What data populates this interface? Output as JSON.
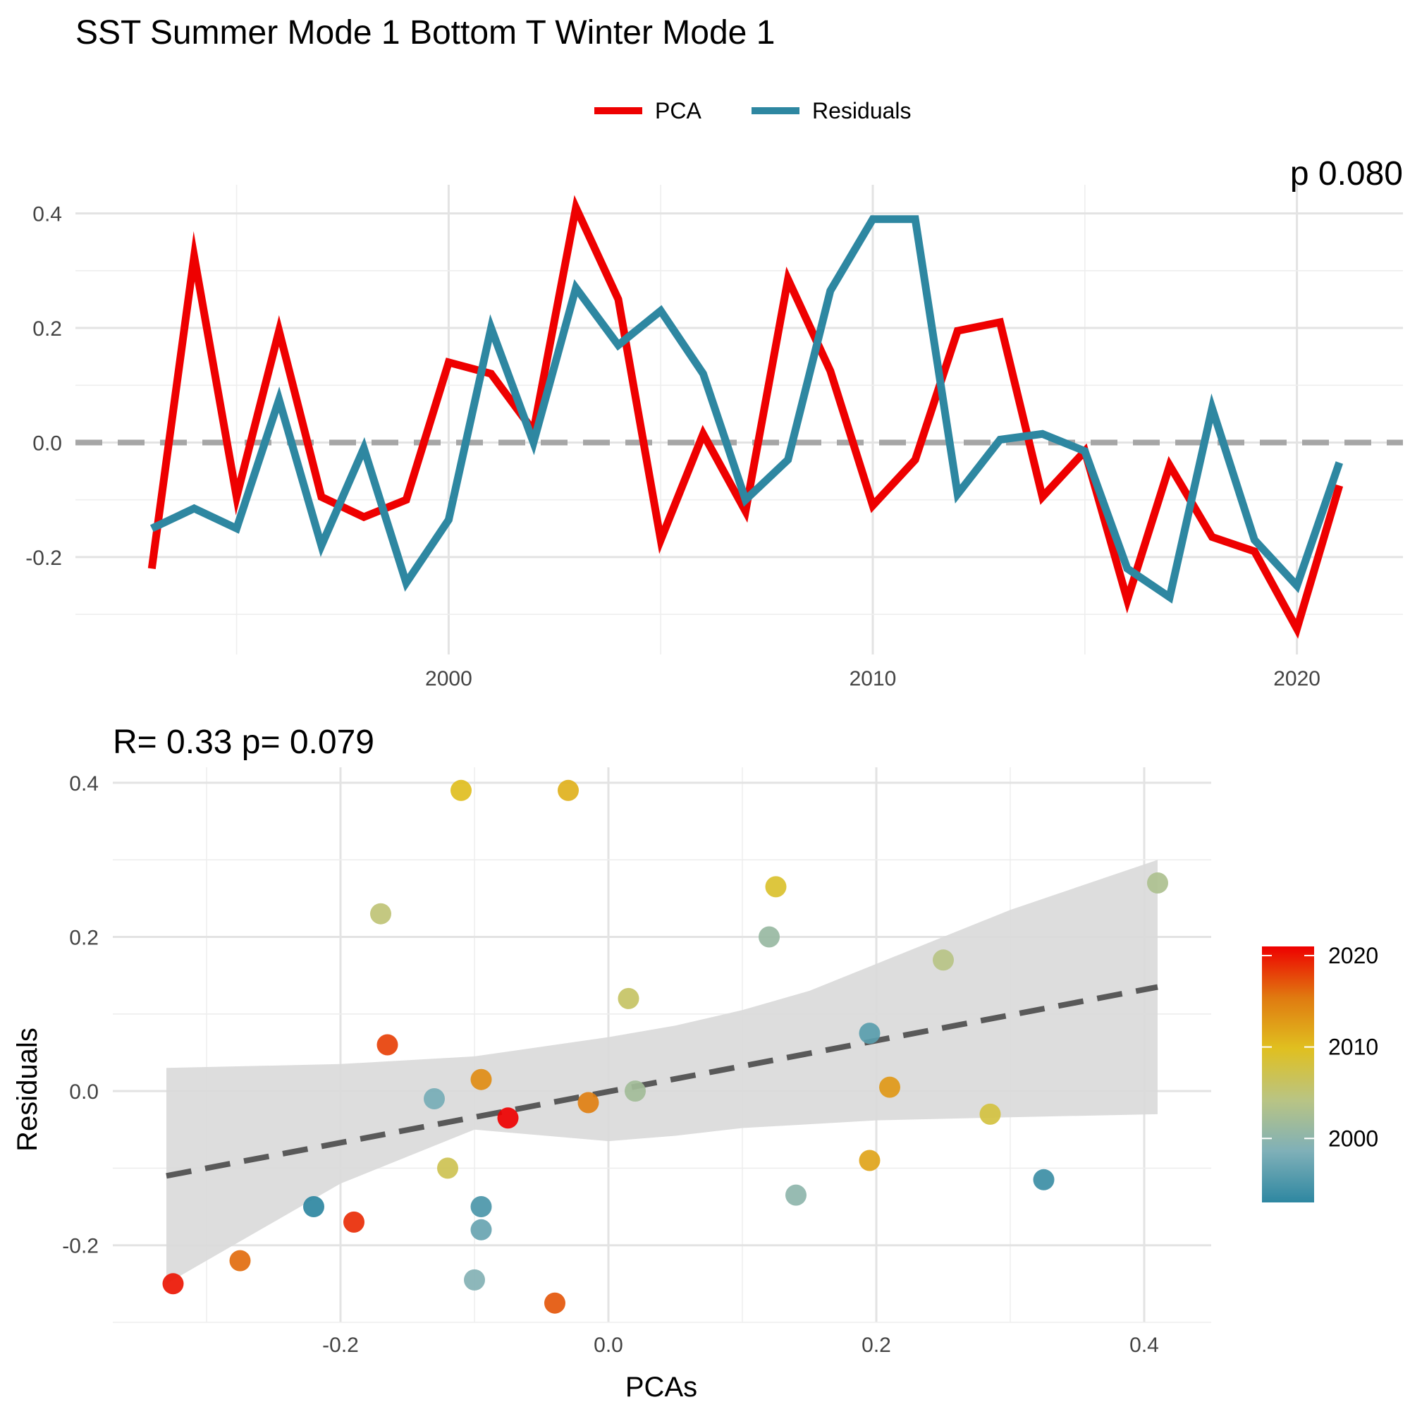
{
  "title": "SST Summer Mode 1 Bottom T Winter Mode 1",
  "colors": {
    "pca": "#ee0000",
    "residuals": "#2e87a1",
    "zero_line": "#a6a6a6",
    "fit_line": "#595959",
    "ribbon": "#d9d9d9",
    "grid": "#e3e3e3"
  },
  "chart_data": [
    {
      "type": "line",
      "legend": {
        "placement": "top",
        "entries": [
          "PCA",
          "Residuals"
        ]
      },
      "xlim": [
        1991.2,
        2022.5
      ],
      "ylim": [
        -0.37,
        0.45
      ],
      "x_ticks": [
        2000,
        2010,
        2020
      ],
      "y_ticks": [
        -0.2,
        0.0,
        0.2,
        0.4
      ],
      "y_tick_labels": [
        "-0.2",
        "0.0",
        "0.2",
        "0.4"
      ],
      "grid": true,
      "reference_line": {
        "y": 0,
        "style": "dashed"
      },
      "x": [
        1993,
        1994,
        1995,
        1996,
        1997,
        1998,
        1999,
        2000,
        2001,
        2002,
        2003,
        2004,
        2005,
        2006,
        2007,
        2008,
        2009,
        2010,
        2011,
        2012,
        2013,
        2014,
        2015,
        2016,
        2017,
        2018,
        2019,
        2020,
        2021
      ],
      "series": [
        {
          "name": "PCA",
          "values": [
            -0.22,
            0.325,
            -0.095,
            0.195,
            -0.095,
            -0.13,
            -0.1,
            0.14,
            0.12,
            0.02,
            0.41,
            0.25,
            -0.17,
            0.015,
            -0.12,
            0.285,
            0.125,
            -0.11,
            -0.03,
            0.195,
            0.21,
            -0.095,
            -0.015,
            -0.275,
            -0.04,
            -0.165,
            -0.19,
            -0.325,
            -0.075
          ]
        },
        {
          "name": "Residuals",
          "values": [
            -0.15,
            -0.115,
            -0.15,
            0.075,
            -0.18,
            -0.01,
            -0.245,
            -0.135,
            0.2,
            0.0,
            0.27,
            0.17,
            0.23,
            0.12,
            -0.1,
            -0.03,
            0.265,
            0.39,
            0.39,
            -0.09,
            0.005,
            0.015,
            -0.015,
            -0.22,
            -0.27,
            0.06,
            -0.17,
            -0.25,
            -0.035
          ]
        }
      ],
      "corner_label": "p  0.080"
    },
    {
      "type": "scatter",
      "subtitle": "R= 0.33  p= 0.079",
      "xlabel": "PCAs",
      "ylabel": "Residuals",
      "xlim": [
        -0.37,
        0.45
      ],
      "ylim": [
        -0.3,
        0.42
      ],
      "x_ticks": [
        -0.2,
        0.0,
        0.2,
        0.4
      ],
      "x_tick_labels": [
        "-0.2",
        "0.0",
        "0.2",
        "0.4"
      ],
      "y_ticks": [
        -0.2,
        0.0,
        0.2,
        0.4
      ],
      "y_tick_labels": [
        "-0.2",
        "0.0",
        "0.2",
        "0.4"
      ],
      "grid": true,
      "colorbar": {
        "range": [
          1993,
          2021
        ],
        "ticks": [
          2000,
          2010,
          2020
        ],
        "colors": [
          "#2e87a1",
          "#7fb0b8",
          "#b9c484",
          "#e0c020",
          "#e07a10",
          "#ee0000"
        ]
      },
      "fit": {
        "style": "dashed",
        "line": [
          [
            -0.33,
            -0.11
          ],
          [
            0.41,
            0.135
          ]
        ],
        "ribbon": [
          [
            -0.33,
            -0.25,
            0.03
          ],
          [
            -0.2,
            -0.12,
            0.035
          ],
          [
            -0.1,
            -0.05,
            0.045
          ],
          [
            0.0,
            -0.065,
            0.07
          ],
          [
            0.05,
            -0.058,
            0.085
          ],
          [
            0.1,
            -0.048,
            0.105
          ],
          [
            0.15,
            -0.043,
            0.13
          ],
          [
            0.2,
            -0.038,
            0.165
          ],
          [
            0.3,
            -0.034,
            0.235
          ],
          [
            0.41,
            -0.03,
            0.3
          ]
        ]
      },
      "points": [
        {
          "year": 1993,
          "x": -0.22,
          "y": -0.15
        },
        {
          "year": 1994,
          "x": 0.325,
          "y": -0.115
        },
        {
          "year": 1995,
          "x": -0.095,
          "y": -0.15
        },
        {
          "year": 1996,
          "x": 0.195,
          "y": 0.075
        },
        {
          "year": 1997,
          "x": -0.095,
          "y": -0.18
        },
        {
          "year": 1998,
          "x": -0.13,
          "y": -0.01
        },
        {
          "year": 1999,
          "x": -0.1,
          "y": -0.245
        },
        {
          "year": 2000,
          "x": 0.14,
          "y": -0.135
        },
        {
          "year": 2001,
          "x": 0.12,
          "y": 0.2
        },
        {
          "year": 2002,
          "x": 0.02,
          "y": 0.0
        },
        {
          "year": 2003,
          "x": 0.41,
          "y": 0.27
        },
        {
          "year": 2004,
          "x": 0.25,
          "y": 0.17
        },
        {
          "year": 2005,
          "x": -0.17,
          "y": 0.23
        },
        {
          "year": 2006,
          "x": 0.015,
          "y": 0.12
        },
        {
          "year": 2007,
          "x": -0.12,
          "y": -0.1
        },
        {
          "year": 2008,
          "x": 0.285,
          "y": -0.03
        },
        {
          "year": 2009,
          "x": 0.125,
          "y": 0.265
        },
        {
          "year": 2010,
          "x": -0.11,
          "y": 0.39
        },
        {
          "year": 2011,
          "x": -0.03,
          "y": 0.39
        },
        {
          "year": 2012,
          "x": 0.195,
          "y": -0.09
        },
        {
          "year": 2013,
          "x": 0.21,
          "y": 0.005
        },
        {
          "year": 2014,
          "x": -0.095,
          "y": 0.015
        },
        {
          "year": 2015,
          "x": -0.015,
          "y": -0.015
        },
        {
          "year": 2016,
          "x": -0.275,
          "y": -0.22
        },
        {
          "year": 2017,
          "x": -0.04,
          "y": -0.275
        },
        {
          "year": 2018,
          "x": -0.165,
          "y": 0.06
        },
        {
          "year": 2019,
          "x": -0.19,
          "y": -0.17
        },
        {
          "year": 2020,
          "x": -0.325,
          "y": -0.25
        },
        {
          "year": 2021,
          "x": -0.075,
          "y": -0.035
        }
      ]
    }
  ]
}
